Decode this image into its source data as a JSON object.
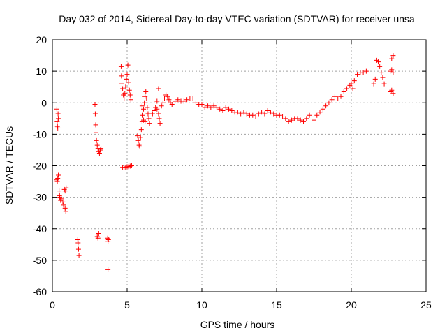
{
  "colors": {
    "series": "#ff0000",
    "grid": "#a0a0a0",
    "frame": "#000000",
    "background": "#ffffff"
  },
  "chart_data": {
    "type": "scatter",
    "title": "Day 032 of 2014, Sidereal Day-to-day VTEC variation (SDTVAR) for receiver unsa",
    "xlabel": "GPS time / hours",
    "ylabel": "SDTVAR / TECUs",
    "xlim": [
      0,
      25
    ],
    "ylim": [
      -60,
      20
    ],
    "xticks": [
      0,
      5,
      10,
      15,
      20,
      25
    ],
    "yticks": [
      -60,
      -50,
      -40,
      -30,
      -20,
      -10,
      0,
      10,
      20
    ],
    "grid": true,
    "marker": "plus",
    "series": [
      {
        "name": "SDTVAR",
        "points": [
          [
            0.3,
            -2.0
          ],
          [
            0.32,
            -6.0
          ],
          [
            0.34,
            -7.5
          ],
          [
            0.36,
            -8.0
          ],
          [
            0.38,
            -3.5
          ],
          [
            0.4,
            -5.0
          ],
          [
            0.3,
            -24.5
          ],
          [
            0.33,
            -25.0
          ],
          [
            0.36,
            -24.0
          ],
          [
            0.4,
            -23.0
          ],
          [
            0.45,
            -28.0
          ],
          [
            0.48,
            -29.5
          ],
          [
            0.5,
            -30.0
          ],
          [
            0.55,
            -31.0
          ],
          [
            0.6,
            -30.5
          ],
          [
            0.7,
            -31.5
          ],
          [
            0.75,
            -32.5
          ],
          [
            0.8,
            -27.5
          ],
          [
            0.85,
            -28.0
          ],
          [
            0.85,
            -33.5
          ],
          [
            0.9,
            -34.5
          ],
          [
            0.92,
            -27.0
          ],
          [
            1.7,
            -43.5
          ],
          [
            1.72,
            -44.5
          ],
          [
            1.75,
            -46.5
          ],
          [
            1.78,
            -48.5
          ],
          [
            2.85,
            -0.5
          ],
          [
            2.87,
            -3.5
          ],
          [
            2.9,
            -7.0
          ],
          [
            2.92,
            -9.5
          ],
          [
            2.95,
            -12.0
          ],
          [
            3.0,
            -13.5
          ],
          [
            3.05,
            -14.5
          ],
          [
            3.1,
            -15.5
          ],
          [
            3.15,
            -16.0
          ],
          [
            3.2,
            -15.0
          ],
          [
            3.25,
            -14.5
          ],
          [
            3.0,
            -42.5
          ],
          [
            3.05,
            -43.0
          ],
          [
            3.1,
            -41.5
          ],
          [
            3.7,
            -43.0
          ],
          [
            3.72,
            -44.0
          ],
          [
            3.75,
            -43.5
          ],
          [
            3.72,
            -53.0
          ],
          [
            4.6,
            11.5
          ],
          [
            4.62,
            8.5
          ],
          [
            4.65,
            6.0
          ],
          [
            4.7,
            4.5
          ],
          [
            4.75,
            2.5
          ],
          [
            4.8,
            1.5
          ],
          [
            4.85,
            3.0
          ],
          [
            4.9,
            5.0
          ],
          [
            4.95,
            7.5
          ],
          [
            5.0,
            9.0
          ],
          [
            5.05,
            12.0
          ],
          [
            5.1,
            6.5
          ],
          [
            5.15,
            4.0
          ],
          [
            5.2,
            2.5
          ],
          [
            5.25,
            1.0
          ],
          [
            4.7,
            -20.5
          ],
          [
            4.8,
            -20.5
          ],
          [
            4.9,
            -20.5
          ],
          [
            5.0,
            -20.3
          ],
          [
            5.1,
            -20.3
          ],
          [
            5.2,
            -20.1
          ],
          [
            5.3,
            -20.0
          ],
          [
            5.7,
            -10.5
          ],
          [
            5.75,
            -12.0
          ],
          [
            5.8,
            -13.5
          ],
          [
            5.85,
            -14.0
          ],
          [
            5.9,
            -11.0
          ],
          [
            5.95,
            -8.5
          ],
          [
            6.0,
            -6.0
          ],
          [
            6.05,
            -4.0
          ],
          [
            6.1,
            -2.0
          ],
          [
            6.15,
            0.0
          ],
          [
            6.2,
            2.0
          ],
          [
            6.25,
            3.5
          ],
          [
            6.3,
            1.5
          ],
          [
            6.35,
            -1.5
          ],
          [
            6.4,
            -3.5
          ],
          [
            6.45,
            -5.0
          ],
          [
            6.5,
            -6.5
          ],
          [
            6.0,
            -1.0
          ],
          [
            6.1,
            -5.5
          ],
          [
            6.2,
            -6.0
          ],
          [
            6.7,
            -3.5
          ],
          [
            6.8,
            -2.5
          ],
          [
            6.9,
            -1.5
          ],
          [
            7.0,
            -2.0
          ],
          [
            7.1,
            -3.5
          ],
          [
            7.15,
            -5.0
          ],
          [
            7.2,
            -6.5
          ],
          [
            7.0,
            0.5
          ],
          [
            7.1,
            4.5
          ],
          [
            7.3,
            -1.0
          ],
          [
            7.4,
            0.0
          ],
          [
            7.5,
            1.5
          ],
          [
            7.6,
            2.5
          ],
          [
            7.7,
            2.0
          ],
          [
            7.8,
            1.0
          ],
          [
            7.9,
            0.0
          ],
          [
            8.0,
            -0.5
          ],
          [
            8.2,
            0.5
          ],
          [
            8.4,
            1.0
          ],
          [
            8.6,
            0.5
          ],
          [
            8.8,
            0.5
          ],
          [
            9.0,
            1.0
          ],
          [
            9.2,
            1.5
          ],
          [
            9.4,
            1.5
          ],
          [
            9.6,
            0.0
          ],
          [
            9.8,
            -0.5
          ],
          [
            10.0,
            -0.5
          ],
          [
            10.2,
            -1.5
          ],
          [
            10.4,
            -1.0
          ],
          [
            10.6,
            -1.5
          ],
          [
            10.8,
            -1.0
          ],
          [
            11.0,
            -1.5
          ],
          [
            11.2,
            -2.0
          ],
          [
            11.4,
            -2.5
          ],
          [
            11.6,
            -1.5
          ],
          [
            11.8,
            -2.0
          ],
          [
            12.0,
            -2.5
          ],
          [
            12.2,
            -3.0
          ],
          [
            12.4,
            -3.0
          ],
          [
            12.6,
            -3.5
          ],
          [
            12.8,
            -3.0
          ],
          [
            13.0,
            -3.5
          ],
          [
            13.2,
            -4.0
          ],
          [
            13.4,
            -4.0
          ],
          [
            13.6,
            -4.5
          ],
          [
            13.8,
            -3.5
          ],
          [
            14.0,
            -3.0
          ],
          [
            14.2,
            -3.5
          ],
          [
            14.4,
            -2.5
          ],
          [
            14.6,
            -3.0
          ],
          [
            14.8,
            -3.5
          ],
          [
            15.0,
            -4.0
          ],
          [
            15.2,
            -4.0
          ],
          [
            15.4,
            -4.5
          ],
          [
            15.6,
            -5.0
          ],
          [
            15.8,
            -6.0
          ],
          [
            16.0,
            -5.5
          ],
          [
            16.2,
            -5.0
          ],
          [
            16.4,
            -5.0
          ],
          [
            16.6,
            -5.5
          ],
          [
            16.8,
            -6.0
          ],
          [
            17.0,
            -5.0
          ],
          [
            17.2,
            -4.0
          ],
          [
            17.5,
            -5.5
          ],
          [
            17.7,
            -4.0
          ],
          [
            17.9,
            -3.0
          ],
          [
            18.1,
            -2.0
          ],
          [
            18.3,
            -1.0
          ],
          [
            18.5,
            0.0
          ],
          [
            18.7,
            1.0
          ],
          [
            18.9,
            2.0
          ],
          [
            19.1,
            1.5
          ],
          [
            19.3,
            2.0
          ],
          [
            19.5,
            3.5
          ],
          [
            19.7,
            4.5
          ],
          [
            19.9,
            5.5
          ],
          [
            20.0,
            6.0
          ],
          [
            20.1,
            4.5
          ],
          [
            20.2,
            7.0
          ],
          [
            20.4,
            9.0
          ],
          [
            20.6,
            9.5
          ],
          [
            20.8,
            9.5
          ],
          [
            21.0,
            10.0
          ],
          [
            21.5,
            6.0
          ],
          [
            21.6,
            7.5
          ],
          [
            21.7,
            13.5
          ],
          [
            21.8,
            13.0
          ],
          [
            21.9,
            11.5
          ],
          [
            22.0,
            9.5
          ],
          [
            22.1,
            8.0
          ],
          [
            22.2,
            6.0
          ],
          [
            22.6,
            10.0
          ],
          [
            22.7,
            10.5
          ],
          [
            22.8,
            9.5
          ],
          [
            22.6,
            3.5
          ],
          [
            22.7,
            4.0
          ],
          [
            22.8,
            3.0
          ],
          [
            22.7,
            14.0
          ],
          [
            22.8,
            15.0
          ]
        ]
      }
    ]
  }
}
